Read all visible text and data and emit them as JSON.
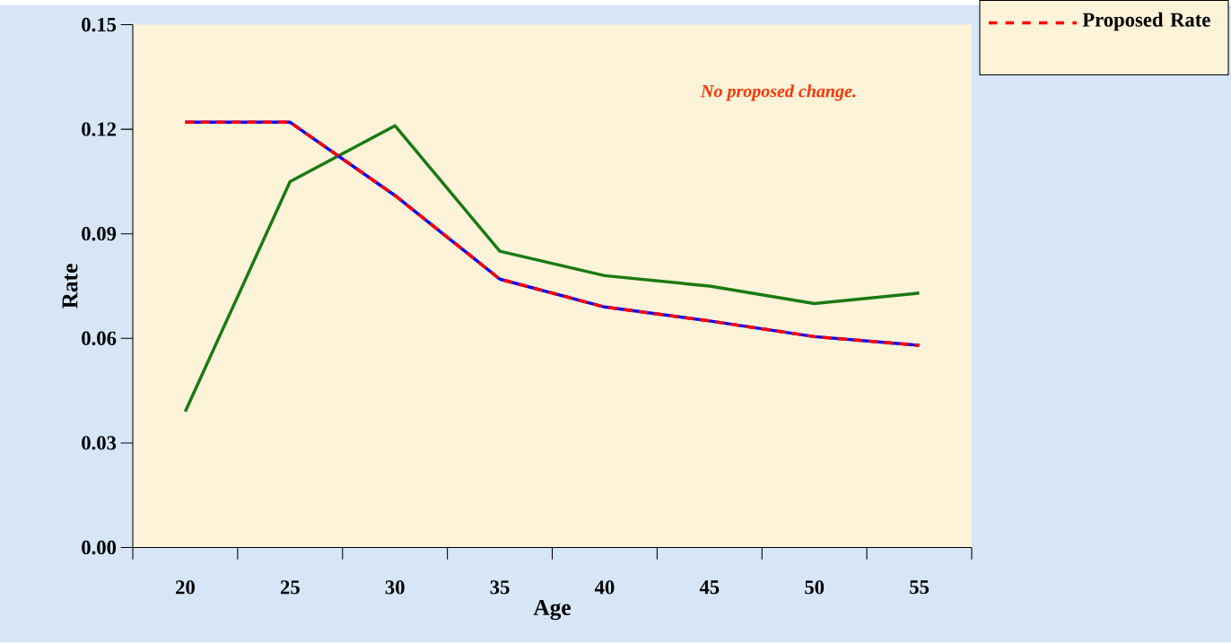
{
  "chart_data": {
    "type": "line",
    "xlabel": "Age",
    "ylabel": "Rate",
    "categories": [
      "20",
      "25",
      "30",
      "35",
      "40",
      "45",
      "50",
      "55"
    ],
    "series": [
      {
        "color": "#1a7a12",
        "line_style": "solid",
        "values": [
          0.039,
          0.105,
          0.121,
          0.085,
          0.078,
          0.075,
          0.07,
          0.073
        ]
      },
      {
        "color": "#0000ff",
        "line_style": "solid",
        "values": [
          0.122,
          0.122,
          0.101,
          0.077,
          0.069,
          0.065,
          0.0605,
          0.058
        ]
      },
      {
        "name": "Proposed Rate",
        "color": "#ff0000",
        "line_style": "dashed",
        "values": [
          0.122,
          0.122,
          0.101,
          0.077,
          0.069,
          0.065,
          0.0605,
          0.058
        ]
      }
    ],
    "ylim": [
      0,
      0.15
    ],
    "yticks": [
      {
        "value": 0,
        "label": "0.00"
      },
      0.03,
      0.06,
      0.09,
      0.12,
      0.15
    ],
    "annotations": [
      "No proposed change."
    ],
    "grid": false,
    "legend": "top right",
    "marker": "none"
  }
}
